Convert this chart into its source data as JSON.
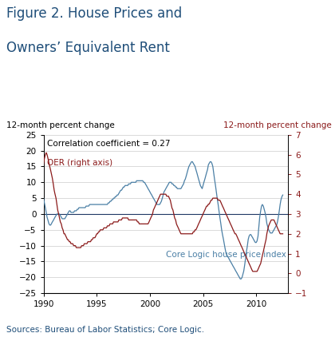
{
  "title_line1": "Figure 2. House Prices and",
  "title_line2": "Owners’ Equivalent Rent",
  "title_color": "#1f4e79",
  "ylabel_left": "12-month percent change",
  "ylabel_right": "12-month percent change",
  "source_text": "Sources: Bureau of Labor Statistics; Core Logic.",
  "source_color": "#1f4e79",
  "correlation_text": "Correlation coefficient = 0.27",
  "label_core_logic": "Core Logic house price index",
  "label_oer": "OER (right axis)",
  "color_core_logic": "#4a7fa5",
  "color_oer": "#8b1a1a",
  "color_zero_line": "#1f3864",
  "ylim_left": [
    -25,
    25
  ],
  "ylim_right": [
    -1,
    7
  ],
  "yticks_left": [
    -25,
    -20,
    -15,
    -10,
    -5,
    0,
    5,
    10,
    15,
    20,
    25
  ],
  "yticks_right": [
    -1,
    0,
    1,
    2,
    3,
    4,
    5,
    6,
    7
  ],
  "xticks": [
    1990,
    1995,
    2000,
    2005,
    2010
  ],
  "xlim": [
    1990,
    2013
  ],
  "core_logic_x": [
    1990.0,
    1990.08,
    1990.17,
    1990.25,
    1990.33,
    1990.42,
    1990.5,
    1990.58,
    1990.67,
    1990.75,
    1990.83,
    1990.92,
    1991.0,
    1991.08,
    1991.17,
    1991.25,
    1991.33,
    1991.42,
    1991.5,
    1991.58,
    1991.67,
    1991.75,
    1991.83,
    1991.92,
    1992.0,
    1992.08,
    1992.17,
    1992.25,
    1992.33,
    1992.42,
    1992.5,
    1992.58,
    1992.67,
    1992.75,
    1992.83,
    1992.92,
    1993.0,
    1993.08,
    1993.17,
    1993.25,
    1993.33,
    1993.42,
    1993.5,
    1993.58,
    1993.67,
    1993.75,
    1993.83,
    1993.92,
    1994.0,
    1994.08,
    1994.17,
    1994.25,
    1994.33,
    1994.42,
    1994.5,
    1994.58,
    1994.67,
    1994.75,
    1994.83,
    1994.92,
    1995.0,
    1995.08,
    1995.17,
    1995.25,
    1995.33,
    1995.42,
    1995.5,
    1995.58,
    1995.67,
    1995.75,
    1995.83,
    1995.92,
    1996.0,
    1996.08,
    1996.17,
    1996.25,
    1996.33,
    1996.42,
    1996.5,
    1996.58,
    1996.67,
    1996.75,
    1996.83,
    1996.92,
    1997.0,
    1997.08,
    1997.17,
    1997.25,
    1997.33,
    1997.42,
    1997.5,
    1997.58,
    1997.67,
    1997.75,
    1997.83,
    1997.92,
    1998.0,
    1998.08,
    1998.17,
    1998.25,
    1998.33,
    1998.42,
    1998.5,
    1998.58,
    1998.67,
    1998.75,
    1998.83,
    1998.92,
    1999.0,
    1999.08,
    1999.17,
    1999.25,
    1999.33,
    1999.42,
    1999.5,
    1999.58,
    1999.67,
    1999.75,
    1999.83,
    1999.92,
    2000.0,
    2000.08,
    2000.17,
    2000.25,
    2000.33,
    2000.42,
    2000.5,
    2000.58,
    2000.67,
    2000.75,
    2000.83,
    2000.92,
    2001.0,
    2001.08,
    2001.17,
    2001.25,
    2001.33,
    2001.42,
    2001.5,
    2001.58,
    2001.67,
    2001.75,
    2001.83,
    2001.92,
    2002.0,
    2002.08,
    2002.17,
    2002.25,
    2002.33,
    2002.42,
    2002.5,
    2002.58,
    2002.67,
    2002.75,
    2002.83,
    2002.92,
    2003.0,
    2003.08,
    2003.17,
    2003.25,
    2003.33,
    2003.42,
    2003.5,
    2003.58,
    2003.67,
    2003.75,
    2003.83,
    2003.92,
    2004.0,
    2004.08,
    2004.17,
    2004.25,
    2004.33,
    2004.42,
    2004.5,
    2004.58,
    2004.67,
    2004.75,
    2004.83,
    2004.92,
    2005.0,
    2005.08,
    2005.17,
    2005.25,
    2005.33,
    2005.42,
    2005.5,
    2005.58,
    2005.67,
    2005.75,
    2005.83,
    2005.92,
    2006.0,
    2006.08,
    2006.17,
    2006.25,
    2006.33,
    2006.42,
    2006.5,
    2006.58,
    2006.67,
    2006.75,
    2006.83,
    2006.92,
    2007.0,
    2007.08,
    2007.17,
    2007.25,
    2007.33,
    2007.42,
    2007.5,
    2007.58,
    2007.67,
    2007.75,
    2007.83,
    2007.92,
    2008.0,
    2008.08,
    2008.17,
    2008.25,
    2008.33,
    2008.42,
    2008.5,
    2008.58,
    2008.67,
    2008.75,
    2008.83,
    2008.92,
    2009.0,
    2009.08,
    2009.17,
    2009.25,
    2009.33,
    2009.42,
    2009.5,
    2009.58,
    2009.67,
    2009.75,
    2009.83,
    2009.92,
    2010.0,
    2010.08,
    2010.17,
    2010.25,
    2010.33,
    2010.42,
    2010.5,
    2010.58,
    2010.67,
    2010.75,
    2010.83,
    2010.92,
    2011.0,
    2011.08,
    2011.17,
    2011.25,
    2011.33,
    2011.42,
    2011.5,
    2011.58,
    2011.67,
    2011.75,
    2011.83,
    2011.92,
    2012.0,
    2012.08,
    2012.17,
    2012.25,
    2012.33,
    2012.42,
    2012.5
  ],
  "core_logic_y": [
    5.0,
    3.5,
    2.0,
    0.5,
    -1.0,
    -2.0,
    -3.0,
    -3.5,
    -3.5,
    -3.0,
    -2.5,
    -2.0,
    -1.5,
    -1.0,
    -0.5,
    0.0,
    0.0,
    0.0,
    0.0,
    -0.5,
    -1.0,
    -1.5,
    -1.5,
    -1.5,
    -1.5,
    -1.0,
    -0.5,
    0.0,
    0.5,
    1.0,
    1.0,
    0.5,
    0.5,
    0.5,
    0.5,
    1.0,
    1.0,
    1.0,
    1.5,
    1.5,
    2.0,
    2.0,
    2.0,
    2.0,
    2.0,
    2.0,
    2.0,
    2.0,
    2.5,
    2.5,
    2.5,
    2.5,
    3.0,
    3.0,
    3.0,
    3.0,
    3.0,
    3.0,
    3.0,
    3.0,
    3.0,
    3.0,
    3.0,
    3.0,
    3.0,
    3.0,
    3.0,
    3.0,
    3.0,
    3.0,
    3.0,
    3.0,
    3.0,
    3.5,
    3.5,
    4.0,
    4.0,
    4.5,
    4.5,
    5.0,
    5.0,
    5.5,
    5.5,
    6.0,
    6.0,
    6.5,
    7.0,
    7.5,
    7.5,
    8.0,
    8.5,
    8.5,
    9.0,
    9.0,
    9.0,
    9.0,
    9.5,
    9.5,
    9.5,
    10.0,
    10.0,
    10.0,
    10.0,
    10.0,
    10.0,
    10.5,
    10.5,
    10.5,
    10.5,
    10.5,
    10.5,
    10.5,
    10.5,
    10.0,
    10.0,
    9.5,
    9.0,
    8.5,
    8.0,
    7.5,
    7.0,
    6.5,
    6.0,
    5.5,
    5.0,
    4.5,
    4.0,
    3.5,
    3.0,
    3.0,
    3.0,
    3.0,
    3.5,
    4.0,
    5.0,
    6.0,
    7.0,
    7.5,
    8.0,
    8.5,
    9.0,
    9.5,
    10.0,
    10.0,
    10.0,
    9.5,
    9.5,
    9.0,
    9.0,
    8.5,
    8.5,
    8.0,
    8.0,
    8.0,
    8.0,
    8.0,
    8.5,
    9.0,
    9.5,
    10.5,
    11.0,
    12.0,
    13.0,
    14.0,
    15.0,
    15.5,
    16.0,
    16.5,
    16.5,
    16.0,
    15.5,
    15.0,
    14.0,
    13.0,
    12.0,
    11.0,
    10.0,
    9.0,
    8.5,
    8.0,
    9.0,
    10.0,
    11.0,
    12.0,
    13.0,
    14.0,
    15.5,
    16.0,
    16.5,
    16.5,
    16.0,
    15.0,
    13.0,
    11.0,
    9.0,
    7.0,
    5.0,
    3.0,
    1.0,
    -1.0,
    -3.0,
    -5.0,
    -6.5,
    -8.0,
    -9.5,
    -11.0,
    -12.5,
    -13.0,
    -13.5,
    -14.0,
    -14.5,
    -15.0,
    -15.5,
    -16.0,
    -16.5,
    -17.0,
    -17.5,
    -18.0,
    -18.5,
    -19.0,
    -19.5,
    -20.0,
    -20.5,
    -20.5,
    -20.0,
    -19.0,
    -18.0,
    -16.0,
    -14.0,
    -12.0,
    -10.0,
    -8.0,
    -7.0,
    -6.5,
    -6.5,
    -7.0,
    -7.5,
    -8.0,
    -8.5,
    -9.0,
    -9.0,
    -8.5,
    -7.0,
    -4.0,
    -1.0,
    1.0,
    2.5,
    3.0,
    2.5,
    1.5,
    0.5,
    -1.0,
    -3.0,
    -4.0,
    -5.0,
    -5.5,
    -6.0,
    -6.0,
    -6.0,
    -5.5,
    -5.0,
    -4.5,
    -4.0,
    -3.5,
    -2.5,
    -1.0,
    1.0,
    3.0,
    4.5,
    5.5,
    6.0
  ],
  "oer_x": [
    1990.0,
    1990.08,
    1990.17,
    1990.25,
    1990.33,
    1990.42,
    1990.5,
    1990.58,
    1990.67,
    1990.75,
    1990.83,
    1990.92,
    1991.0,
    1991.08,
    1991.17,
    1991.25,
    1991.33,
    1991.42,
    1991.5,
    1991.58,
    1991.67,
    1991.75,
    1991.83,
    1991.92,
    1992.0,
    1992.08,
    1992.17,
    1992.25,
    1992.33,
    1992.42,
    1992.5,
    1992.58,
    1992.67,
    1992.75,
    1992.83,
    1992.92,
    1993.0,
    1993.08,
    1993.17,
    1993.25,
    1993.33,
    1993.42,
    1993.5,
    1993.58,
    1993.67,
    1993.75,
    1993.83,
    1993.92,
    1994.0,
    1994.08,
    1994.17,
    1994.25,
    1994.33,
    1994.42,
    1994.5,
    1994.58,
    1994.67,
    1994.75,
    1994.83,
    1994.92,
    1995.0,
    1995.08,
    1995.17,
    1995.25,
    1995.33,
    1995.42,
    1995.5,
    1995.58,
    1995.67,
    1995.75,
    1995.83,
    1995.92,
    1996.0,
    1996.08,
    1996.17,
    1996.25,
    1996.33,
    1996.42,
    1996.5,
    1996.58,
    1996.67,
    1996.75,
    1996.83,
    1996.92,
    1997.0,
    1997.08,
    1997.17,
    1997.25,
    1997.33,
    1997.42,
    1997.5,
    1997.58,
    1997.67,
    1997.75,
    1997.83,
    1997.92,
    1998.0,
    1998.08,
    1998.17,
    1998.25,
    1998.33,
    1998.42,
    1998.5,
    1998.58,
    1998.67,
    1998.75,
    1998.83,
    1998.92,
    1999.0,
    1999.08,
    1999.17,
    1999.25,
    1999.33,
    1999.42,
    1999.5,
    1999.58,
    1999.67,
    1999.75,
    1999.83,
    1999.92,
    2000.0,
    2000.08,
    2000.17,
    2000.25,
    2000.33,
    2000.42,
    2000.5,
    2000.58,
    2000.67,
    2000.75,
    2000.83,
    2000.92,
    2001.0,
    2001.08,
    2001.17,
    2001.25,
    2001.33,
    2001.42,
    2001.5,
    2001.58,
    2001.67,
    2001.75,
    2001.83,
    2001.92,
    2002.0,
    2002.08,
    2002.17,
    2002.25,
    2002.33,
    2002.42,
    2002.5,
    2002.58,
    2002.67,
    2002.75,
    2002.83,
    2002.92,
    2003.0,
    2003.08,
    2003.17,
    2003.25,
    2003.33,
    2003.42,
    2003.5,
    2003.58,
    2003.67,
    2003.75,
    2003.83,
    2003.92,
    2004.0,
    2004.08,
    2004.17,
    2004.25,
    2004.33,
    2004.42,
    2004.5,
    2004.58,
    2004.67,
    2004.75,
    2004.83,
    2004.92,
    2005.0,
    2005.08,
    2005.17,
    2005.25,
    2005.33,
    2005.42,
    2005.5,
    2005.58,
    2005.67,
    2005.75,
    2005.83,
    2005.92,
    2006.0,
    2006.08,
    2006.17,
    2006.25,
    2006.33,
    2006.42,
    2006.5,
    2006.58,
    2006.67,
    2006.75,
    2006.83,
    2006.92,
    2007.0,
    2007.08,
    2007.17,
    2007.25,
    2007.33,
    2007.42,
    2007.5,
    2007.58,
    2007.67,
    2007.75,
    2007.83,
    2007.92,
    2008.0,
    2008.08,
    2008.17,
    2008.25,
    2008.33,
    2008.42,
    2008.5,
    2008.58,
    2008.67,
    2008.75,
    2008.83,
    2008.92,
    2009.0,
    2009.08,
    2009.17,
    2009.25,
    2009.33,
    2009.42,
    2009.5,
    2009.58,
    2009.67,
    2009.75,
    2009.83,
    2009.92,
    2010.0,
    2010.08,
    2010.17,
    2010.25,
    2010.33,
    2010.42,
    2010.5,
    2010.58,
    2010.67,
    2010.75,
    2010.83,
    2010.92,
    2011.0,
    2011.08,
    2011.17,
    2011.25,
    2011.33,
    2011.42,
    2011.5,
    2011.58,
    2011.67,
    2011.75,
    2011.83,
    2011.92,
    2012.0,
    2012.08,
    2012.17,
    2012.25,
    2012.33,
    2012.42,
    2012.5
  ],
  "oer_y": [
    5.5,
    5.8,
    6.0,
    6.1,
    6.0,
    5.8,
    5.6,
    5.4,
    5.2,
    5.0,
    4.8,
    4.5,
    4.2,
    4.0,
    3.8,
    3.5,
    3.2,
    3.0,
    2.8,
    2.6,
    2.5,
    2.3,
    2.2,
    2.0,
    2.0,
    1.9,
    1.8,
    1.7,
    1.7,
    1.6,
    1.6,
    1.5,
    1.5,
    1.5,
    1.4,
    1.4,
    1.4,
    1.3,
    1.3,
    1.3,
    1.3,
    1.3,
    1.3,
    1.4,
    1.4,
    1.4,
    1.5,
    1.5,
    1.5,
    1.5,
    1.6,
    1.6,
    1.6,
    1.6,
    1.7,
    1.7,
    1.8,
    1.8,
    1.8,
    1.9,
    2.0,
    2.0,
    2.1,
    2.1,
    2.2,
    2.2,
    2.2,
    2.2,
    2.3,
    2.3,
    2.3,
    2.3,
    2.4,
    2.4,
    2.4,
    2.5,
    2.5,
    2.5,
    2.5,
    2.6,
    2.6,
    2.6,
    2.6,
    2.6,
    2.6,
    2.7,
    2.7,
    2.7,
    2.7,
    2.8,
    2.8,
    2.8,
    2.8,
    2.8,
    2.8,
    2.8,
    2.7,
    2.7,
    2.7,
    2.7,
    2.7,
    2.7,
    2.7,
    2.7,
    2.7,
    2.7,
    2.6,
    2.6,
    2.5,
    2.5,
    2.5,
    2.5,
    2.5,
    2.5,
    2.5,
    2.5,
    2.5,
    2.5,
    2.5,
    2.6,
    2.7,
    2.8,
    2.9,
    3.0,
    3.2,
    3.3,
    3.4,
    3.5,
    3.6,
    3.7,
    3.8,
    3.9,
    4.0,
    4.0,
    4.0,
    4.0,
    4.0,
    4.0,
    4.0,
    3.9,
    3.9,
    3.9,
    3.8,
    3.7,
    3.5,
    3.3,
    3.2,
    3.0,
    2.8,
    2.7,
    2.5,
    2.4,
    2.3,
    2.2,
    2.1,
    2.0,
    2.0,
    2.0,
    2.0,
    2.0,
    2.0,
    2.0,
    2.0,
    2.0,
    2.0,
    2.0,
    2.0,
    2.0,
    2.0,
    2.1,
    2.1,
    2.2,
    2.2,
    2.3,
    2.4,
    2.5,
    2.6,
    2.7,
    2.8,
    2.9,
    3.0,
    3.1,
    3.2,
    3.3,
    3.4,
    3.4,
    3.5,
    3.5,
    3.6,
    3.7,
    3.7,
    3.8,
    3.8,
    3.8,
    3.8,
    3.8,
    3.8,
    3.7,
    3.7,
    3.7,
    3.6,
    3.5,
    3.4,
    3.3,
    3.2,
    3.1,
    3.0,
    2.9,
    2.8,
    2.7,
    2.6,
    2.5,
    2.4,
    2.3,
    2.2,
    2.1,
    2.0,
    2.0,
    1.9,
    1.8,
    1.7,
    1.6,
    1.5,
    1.4,
    1.3,
    1.2,
    1.1,
    1.0,
    0.9,
    0.8,
    0.7,
    0.6,
    0.5,
    0.4,
    0.3,
    0.2,
    0.1,
    0.1,
    0.1,
    0.1,
    0.1,
    0.1,
    0.2,
    0.3,
    0.4,
    0.5,
    0.7,
    0.9,
    1.1,
    1.3,
    1.5,
    1.7,
    2.0,
    2.2,
    2.4,
    2.5,
    2.6,
    2.7,
    2.7,
    2.7,
    2.7,
    2.6,
    2.5,
    2.4,
    2.3,
    2.2,
    2.1,
    2.0,
    2.0,
    2.0,
    2.0
  ]
}
